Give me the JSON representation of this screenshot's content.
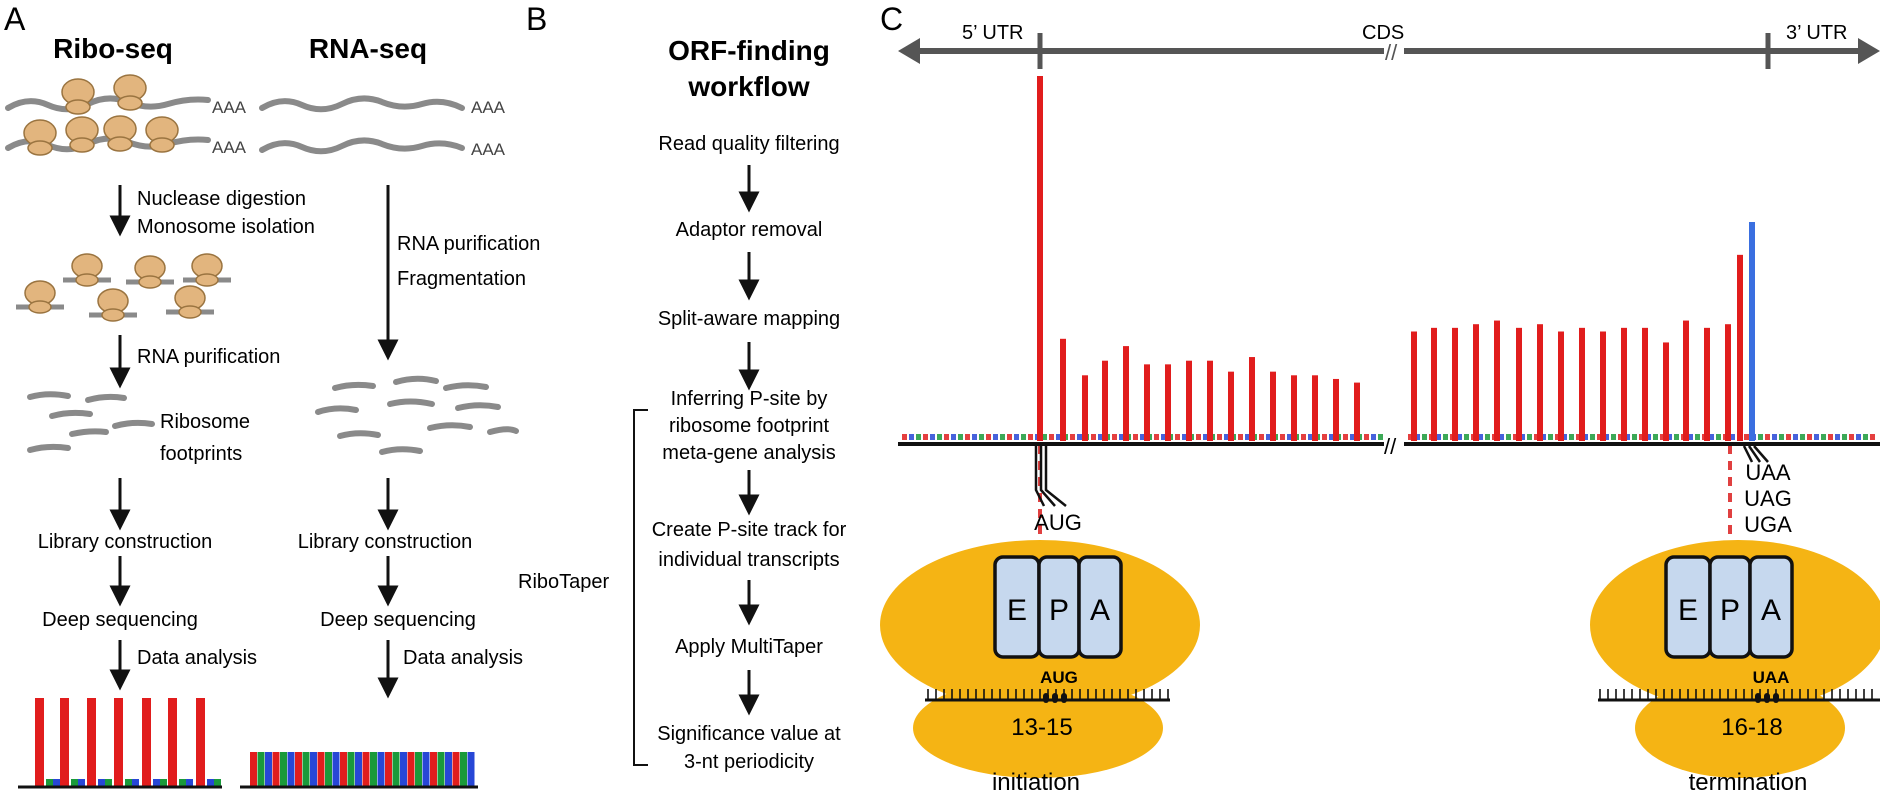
{
  "panel_a": {
    "letter": "A",
    "ribo_title": "Ribo-seq",
    "rna_title": "RNA-seq",
    "polya": "AAA",
    "nuclease": "Nuclease digestion",
    "monosome": "Monosome isolation",
    "rna_purif": "RNA purification",
    "ribosome": "Ribosome",
    "footprints": "footprints",
    "rna_purif2": "RNA purification",
    "fragmentation": "Fragmentation",
    "lib": "Library construction",
    "deep": "Deep sequencing",
    "data": "Data analysis",
    "colors": {
      "red": "#e11d1d",
      "green": "#1a9a3a",
      "blue": "#2747d6",
      "grey": "#8a8a8a",
      "ribosome": "#e2b57e"
    }
  },
  "panel_b": {
    "letter": "B",
    "title_line1": "ORF-finding",
    "title_line2": "workflow",
    "steps": [
      "Read quality filtering",
      "Adaptor removal",
      "Split-aware mapping",
      "Inferring P-site by",
      "ribosome footprint",
      "meta-gene analysis",
      "Create P-site track for",
      "individual transcripts",
      "Apply MultiTaper",
      "Significance value at",
      "3-nt periodicity"
    ],
    "bracket_label": "RiboTaper"
  },
  "panel_c": {
    "letter": "C",
    "utr5": "5’ UTR",
    "cds": "CDS",
    "utr3": "3’ UTR",
    "break_mark": "//",
    "start_codon": "AUG",
    "stop_codons": [
      "UAA",
      "UAG",
      "UGA"
    ],
    "site_e": "E",
    "site_p": "P",
    "site_a": "A",
    "codon_init": "AUG",
    "codon_term": "UAA",
    "range_init": "13-15",
    "range_term": "16-18",
    "label_init": "initiation",
    "label_term": "termination",
    "colors": {
      "bar": "#e11d1d",
      "stop_peak": "#3a6fe0",
      "ribosome": "#f5b414",
      "site_fill": "#c6d8ee",
      "dashed": "#e04040",
      "axis": "#555555"
    },
    "signal": {
      "cds_left_values": [
        100,
        28,
        18,
        22,
        26,
        21,
        21,
        22,
        22,
        19,
        23,
        19,
        18,
        18,
        17,
        16
      ],
      "cds_right_values": [
        30,
        31,
        31,
        32,
        33,
        31,
        32,
        30,
        31,
        30,
        31,
        31,
        27,
        33,
        31,
        32,
        51,
        60
      ],
      "max_value": 100
    }
  }
}
